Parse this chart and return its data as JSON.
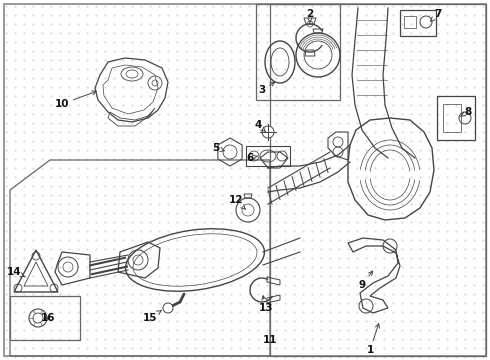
{
  "bg_color": "#ffffff",
  "dot_color": "#cccccc",
  "line_color": "#444444",
  "label_color": "#111111",
  "figsize": [
    4.9,
    3.6
  ],
  "dpi": 100
}
